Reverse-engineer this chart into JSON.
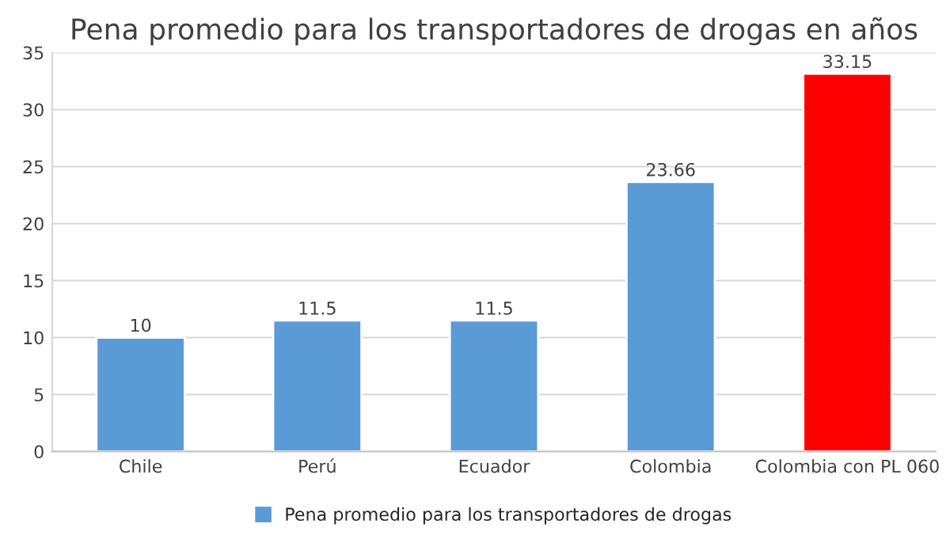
{
  "chart_data": {
    "type": "bar",
    "title": "Pena promedio para los transportadores de drogas en años",
    "categories": [
      "Chile",
      "Perú",
      "Ecuador",
      "Colombia",
      "Colombia con PL 060"
    ],
    "series": [
      {
        "name": "Pena promedio para los transportadores de drogas",
        "color": "#5b9bd5",
        "colors": [
          "#5b9bd5",
          "#5b9bd5",
          "#5b9bd5",
          "#5b9bd5",
          "#ff0000"
        ],
        "values": [
          10,
          11.5,
          11.5,
          23.66,
          33.15
        ]
      }
    ],
    "ylim": [
      0,
      35
    ],
    "yticks": [
      0,
      5,
      10,
      15,
      20,
      25,
      30,
      35
    ],
    "grid": "y",
    "legend": "bottom",
    "data_labels": true
  }
}
